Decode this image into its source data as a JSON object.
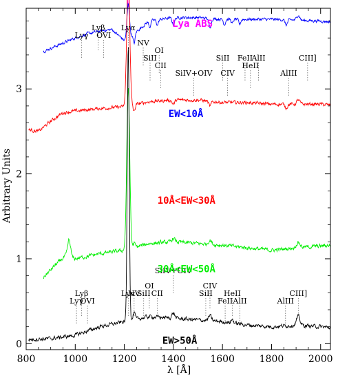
{
  "chart_data": {
    "type": "line",
    "title": "",
    "xlabel": "λ [Å]",
    "ylabel": "Arbitrary Units",
    "xlim": [
      800,
      2040
    ],
    "ylim": [
      -0.07,
      3.95
    ],
    "x_ticks": [
      800,
      1000,
      1200,
      1400,
      1600,
      1800,
      2000
    ],
    "y_ticks": [
      0,
      1,
      2,
      3
    ],
    "grid": false,
    "series": [
      {
        "name": "Lya ABS",
        "color": "#ff00ff",
        "label_pos": [
          1395,
          3.73
        ],
        "offset": 3.62,
        "x_start": 870,
        "anchors": [
          [
            870,
            0.88
          ],
          [
            950,
            0.92
          ],
          [
            1000,
            0.93
          ],
          [
            1050,
            0.95
          ],
          [
            1100,
            0.96
          ],
          [
            1150,
            0.95
          ],
          [
            1200,
            0.85
          ],
          [
            1250,
            0.96
          ],
          [
            1300,
            1.0
          ],
          [
            1400,
            1.02
          ],
          [
            1500,
            1.02
          ],
          [
            1600,
            1.0
          ],
          [
            1700,
            1.0
          ],
          [
            1800,
            0.99
          ],
          [
            1900,
            0.97
          ],
          [
            2000,
            0.96
          ],
          [
            2040,
            0.95
          ]
        ],
        "noise": 0.035,
        "features": [
          [
            1025,
            -0.06,
            8
          ],
          [
            1216,
            -0.55,
            5
          ],
          [
            1240,
            -0.1,
            4
          ],
          [
            1304,
            -0.06,
            4
          ],
          [
            1335,
            -0.06,
            4
          ],
          [
            1400,
            -0.06,
            5
          ],
          [
            1549,
            -0.08,
            5
          ],
          [
            1608,
            -0.06,
            4
          ],
          [
            1640,
            -0.05,
            4
          ],
          [
            1670,
            -0.05,
            4
          ],
          [
            1860,
            -0.05,
            5
          ]
        ]
      },
      {
        "name": "EW<10Å",
        "color": "#0000ff",
        "label_pos": [
          1380,
          2.67
        ],
        "offset": 2.82,
        "x_start": 870,
        "anchors": [
          [
            870,
            0.62
          ],
          [
            950,
            0.72
          ],
          [
            1000,
            0.78
          ],
          [
            1050,
            0.83
          ],
          [
            1100,
            0.86
          ],
          [
            1150,
            0.88
          ],
          [
            1200,
            0.75
          ],
          [
            1260,
            0.88
          ],
          [
            1300,
            0.98
          ],
          [
            1400,
            1.02
          ],
          [
            1500,
            1.02
          ],
          [
            1600,
            1.0
          ],
          [
            1700,
            1.0
          ],
          [
            1800,
            1.0
          ],
          [
            1900,
            0.99
          ],
          [
            2000,
            0.98
          ],
          [
            2040,
            0.97
          ]
        ],
        "noise": 0.03,
        "features": [
          [
            1216,
            0.4,
            5
          ],
          [
            1240,
            -0.12,
            4
          ],
          [
            1304,
            -0.07,
            4
          ],
          [
            1335,
            -0.06,
            4
          ],
          [
            1400,
            -0.08,
            5
          ],
          [
            1549,
            -0.1,
            5
          ],
          [
            1608,
            -0.06,
            4
          ],
          [
            1640,
            -0.05,
            4
          ],
          [
            1670,
            -0.06,
            4
          ],
          [
            1860,
            -0.06,
            5
          ],
          [
            1909,
            0.06,
            6
          ]
        ]
      },
      {
        "name": "10Å<EW<30Å",
        "color": "#ff0000",
        "label_pos": [
          1335,
          1.65
        ],
        "offset": 1.82,
        "x_start": 810,
        "anchors": [
          [
            810,
            0.7
          ],
          [
            850,
            0.68
          ],
          [
            900,
            0.8
          ],
          [
            950,
            0.9
          ],
          [
            1000,
            0.92
          ],
          [
            1100,
            0.95
          ],
          [
            1200,
            0.97
          ],
          [
            1300,
            1.03
          ],
          [
            1400,
            1.05
          ],
          [
            1500,
            1.05
          ],
          [
            1600,
            1.02
          ],
          [
            1700,
            1.02
          ],
          [
            1800,
            1.0
          ],
          [
            1900,
            1.0
          ],
          [
            2000,
            1.0
          ],
          [
            2040,
            0.99
          ]
        ],
        "noise": 0.035,
        "features": [
          [
            1216,
            1.6,
            6
          ],
          [
            1240,
            -0.08,
            4
          ],
          [
            1400,
            -0.05,
            5
          ],
          [
            1549,
            -0.06,
            5
          ],
          [
            1860,
            -0.04,
            5
          ],
          [
            1909,
            0.05,
            6
          ]
        ]
      },
      {
        "name": "30Å<EW<50Å",
        "color": "#00ee00",
        "label_pos": [
          1335,
          0.84
        ],
        "offset": 0.98,
        "x_start": 870,
        "anchors": [
          [
            870,
            -0.2
          ],
          [
            920,
            -0.05
          ],
          [
            960,
            0.05
          ],
          [
            1000,
            0.02
          ],
          [
            1100,
            0.08
          ],
          [
            1200,
            0.12
          ],
          [
            1300,
            0.2
          ],
          [
            1400,
            0.22
          ],
          [
            1500,
            0.2
          ],
          [
            1600,
            0.18
          ],
          [
            1700,
            0.15
          ],
          [
            1800,
            0.12
          ],
          [
            1900,
            0.15
          ],
          [
            2000,
            0.17
          ],
          [
            2040,
            0.18
          ]
        ],
        "noise": 0.04,
        "features": [
          [
            975,
            0.2,
            6
          ],
          [
            1216,
            1.9,
            6
          ],
          [
            1240,
            0.05,
            4
          ],
          [
            1400,
            0.04,
            6
          ],
          [
            1549,
            0.05,
            6
          ],
          [
            1909,
            0.06,
            8
          ]
        ]
      },
      {
        "name": "EW>50Å",
        "color": "#000000",
        "label_pos": [
          1355,
          0.0
        ],
        "offset": 0.0,
        "x_start": 810,
        "anchors": [
          [
            810,
            0.05
          ],
          [
            900,
            0.06
          ],
          [
            1000,
            0.1
          ],
          [
            1100,
            0.2
          ],
          [
            1200,
            0.26
          ],
          [
            1300,
            0.32
          ],
          [
            1400,
            0.3
          ],
          [
            1500,
            0.28
          ],
          [
            1600,
            0.26
          ],
          [
            1700,
            0.22
          ],
          [
            1800,
            0.2
          ],
          [
            1900,
            0.22
          ],
          [
            2000,
            0.2
          ],
          [
            2040,
            0.19
          ]
        ],
        "noise": 0.04,
        "features": [
          [
            1216,
            3.25,
            4
          ],
          [
            1240,
            0.08,
            4
          ],
          [
            1400,
            0.06,
            6
          ],
          [
            1549,
            0.06,
            6
          ],
          [
            1640,
            0.04,
            5
          ],
          [
            1909,
            0.1,
            7
          ]
        ]
      }
    ],
    "line_ids_top": [
      {
        "text": "Lyγ",
        "wl": 1026,
        "row": 1,
        "rows": 1
      },
      {
        "text": "Lyβ",
        "wl": 1094,
        "row": 0,
        "rows": 1
      },
      {
        "text": "OVI",
        "wl": 1116,
        "row": 1,
        "rows": 1
      },
      {
        "text": "Lyα",
        "wl": 1216,
        "row": 0,
        "rows": 1
      },
      {
        "text": "NV",
        "wl": 1277,
        "row": 2,
        "rows": 1
      },
      {
        "text": "OI",
        "wl": 1342,
        "row": 3,
        "rows": 1
      },
      {
        "text": "SiII",
        "wl": 1305,
        "row": 4,
        "rows": 1
      },
      {
        "text": "CII",
        "wl": 1348,
        "row": 5,
        "rows": 1
      },
      {
        "text": "SiIV+OIV",
        "wl": 1483,
        "row": 6,
        "rows": 1
      },
      {
        "text": "SiII",
        "wl": 1601,
        "row": 4,
        "rows": 1
      },
      {
        "text": "CIV",
        "wl": 1621,
        "row": 6,
        "rows": 1
      },
      {
        "text": "FeII",
        "wl": 1692,
        "row": 4,
        "rows": 1
      },
      {
        "text": "HeII",
        "wl": 1714,
        "row": 5,
        "rows": 1
      },
      {
        "text": "AlII",
        "wl": 1747,
        "row": 4,
        "rows": 1
      },
      {
        "text": "AlIII",
        "wl": 1870,
        "row": 6,
        "rows": 1
      },
      {
        "text": "CIII]",
        "wl": 1947,
        "row": 4,
        "rows": 1
      }
    ],
    "line_ids_bottom": [
      {
        "text": "Lyγ",
        "wl": 1005,
        "row": 5,
        "rows": 1
      },
      {
        "text": "Lyβ",
        "wl": 1026,
        "row": 4,
        "rows": 1
      },
      {
        "text": "OVI",
        "wl": 1050,
        "row": 5,
        "rows": 1
      },
      {
        "text": "Lyα",
        "wl": 1216,
        "row": 4,
        "rows": 1
      },
      {
        "text": "NV",
        "wl": 1240,
        "row": 4,
        "rows": 1
      },
      {
        "text": "SiII",
        "wl": 1279,
        "row": 4,
        "rows": 1
      },
      {
        "text": "OI",
        "wl": 1302,
        "row": 3,
        "rows": 1
      },
      {
        "text": "CII",
        "wl": 1334,
        "row": 4,
        "rows": 1
      },
      {
        "text": "SiIV+OIV",
        "wl": 1400,
        "row": 1,
        "rows": 1
      },
      {
        "text": "SiII",
        "wl": 1532,
        "row": 4,
        "rows": 1
      },
      {
        "text": "CIV",
        "wl": 1549,
        "row": 3,
        "rows": 1
      },
      {
        "text": "FeII",
        "wl": 1611,
        "row": 5,
        "rows": 1
      },
      {
        "text": "HeII",
        "wl": 1640,
        "row": 4,
        "rows": 1
      },
      {
        "text": "AlII",
        "wl": 1671,
        "row": 5,
        "rows": 1
      },
      {
        "text": "AlIII",
        "wl": 1857,
        "row": 5,
        "rows": 1
      },
      {
        "text": "CIII]",
        "wl": 1909,
        "row": 4,
        "rows": 1
      }
    ]
  }
}
